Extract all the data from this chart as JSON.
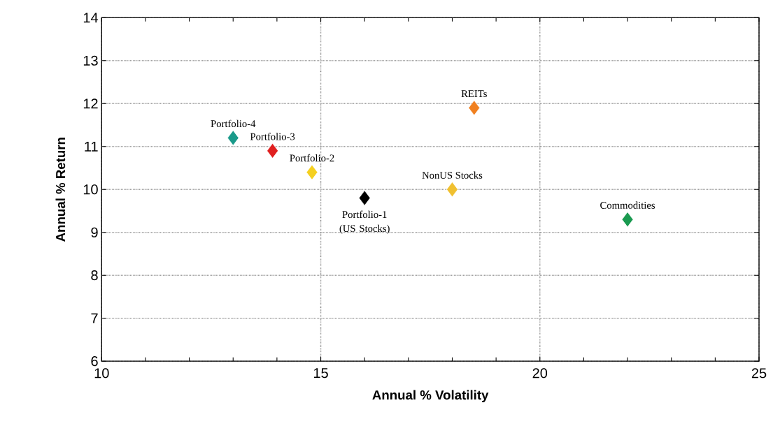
{
  "chart_data": {
    "type": "scatter",
    "xlabel": "Annual % Volatility",
    "ylabel": "Annual % Return",
    "xlim": [
      10,
      25
    ],
    "ylim": [
      6,
      14
    ],
    "xticks": [
      10,
      15,
      20,
      25
    ],
    "yticks": [
      6,
      7,
      8,
      9,
      10,
      11,
      12,
      13,
      14
    ],
    "grid": true,
    "marker": "diamond",
    "series": [
      {
        "name": "Portfolio-4",
        "color": "#1a9a8a",
        "x": [
          13.0
        ],
        "values": [
          11.2
        ]
      },
      {
        "name": "Portfolio-3",
        "color": "#e02020",
        "x": [
          13.9
        ],
        "values": [
          10.9
        ]
      },
      {
        "name": "Portfolio-2",
        "color": "#f5d020",
        "x": [
          14.8
        ],
        "values": [
          10.4
        ]
      },
      {
        "name": "Portfolio-1 (US Stocks)",
        "color": "#000000",
        "x": [
          16.0
        ],
        "values": [
          9.8
        ]
      },
      {
        "name": "NonUS Stocks",
        "color": "#f0c030",
        "x": [
          18.0
        ],
        "values": [
          10.0
        ]
      },
      {
        "name": "REITs",
        "color": "#f08020",
        "x": [
          18.5
        ],
        "values": [
          11.9
        ]
      },
      {
        "name": "Commodities",
        "color": "#1a9a50",
        "x": [
          22.0
        ],
        "values": [
          9.3
        ]
      }
    ]
  }
}
